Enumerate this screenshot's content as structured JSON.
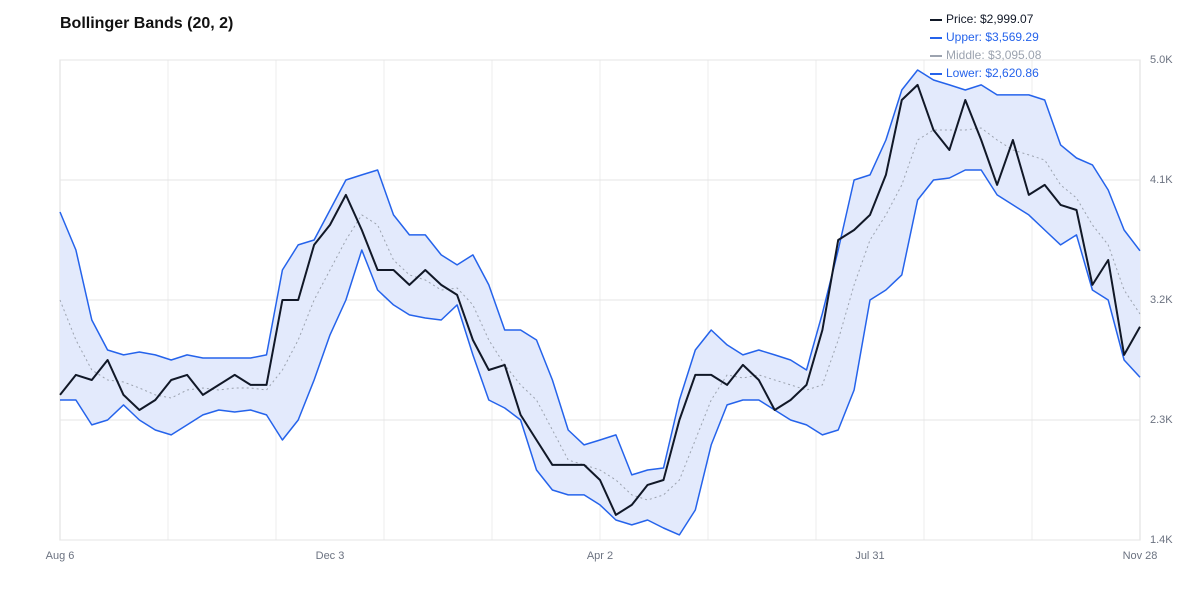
{
  "chart_data": {
    "type": "bollinger",
    "title": "Bollinger Bands (20, 2)",
    "categories": [
      "Aug 6",
      null,
      null,
      null,
      null,
      null,
      null,
      null,
      null,
      null,
      null,
      null,
      null,
      null,
      null,
      null,
      null,
      "Dec 3",
      null,
      null,
      null,
      null,
      null,
      null,
      null,
      null,
      null,
      null,
      null,
      null,
      null,
      null,
      null,
      null,
      "Apr 2",
      null,
      null,
      null,
      null,
      null,
      null,
      null,
      null,
      null,
      null,
      null,
      null,
      null,
      null,
      null,
      null,
      "Jul 31",
      null,
      null,
      null,
      null,
      null,
      null,
      null,
      null,
      null,
      null,
      null,
      null,
      null,
      null,
      null,
      null,
      "Nov 28"
    ],
    "ylim": [
      1400,
      5000
    ],
    "yticks": [
      {
        "value": 1400,
        "label": "1.4K"
      },
      {
        "value": 2300,
        "label": "2.3K"
      },
      {
        "value": 3200,
        "label": "3.2K"
      },
      {
        "value": 4100,
        "label": "4.1K"
      },
      {
        "value": 5000,
        "label": "5.0K"
      }
    ],
    "grid": true,
    "band_fill": "#e3eafc",
    "series": [
      {
        "name": "Price: $2,999.07",
        "color": "#111827",
        "values": [
          2488,
          2638,
          2600,
          2750,
          2488,
          2375,
          2450,
          2600,
          2638,
          2488,
          2563,
          2638,
          2563,
          2563,
          3200,
          3200,
          3613,
          3763,
          3988,
          3725,
          3425,
          3425,
          3313,
          3425,
          3313,
          3238,
          2900,
          2675,
          2713,
          2338,
          2150,
          1963,
          1963,
          1963,
          1850,
          1588,
          1663,
          1813,
          1850,
          2300,
          2638,
          2638,
          2563,
          2713,
          2600,
          2375,
          2450,
          2563,
          2975,
          3650,
          3725,
          3838,
          4138,
          4700,
          4813,
          4475,
          4325,
          4700,
          4400,
          4063,
          4400,
          3988,
          4063,
          3913,
          3875,
          3313,
          3500,
          2788,
          2999.07
        ]
      },
      {
        "name": "Upper: $3,569.29",
        "color": "#2563eb",
        "values": [
          3860,
          3575,
          3050,
          2825,
          2788,
          2810,
          2788,
          2750,
          2788,
          2765,
          2765,
          2765,
          2765,
          2788,
          3425,
          3613,
          3650,
          3875,
          4100,
          4138,
          4175,
          3838,
          3688,
          3688,
          3538,
          3463,
          3538,
          3313,
          2975,
          2975,
          2900,
          2600,
          2225,
          2113,
          2150,
          2188,
          1888,
          1925,
          1940,
          2450,
          2825,
          2975,
          2863,
          2788,
          2825,
          2788,
          2750,
          2675,
          3100,
          3575,
          4100,
          4138,
          4400,
          4775,
          4925,
          4850,
          4813,
          4775,
          4813,
          4738,
          4738,
          4738,
          4700,
          4363,
          4265,
          4213,
          4025,
          3725,
          3569.29
        ]
      },
      {
        "name": "Middle: $3,095.08",
        "color": "#9ca3af",
        "dashed": true,
        "values": [
          3200,
          2900,
          2675,
          2600,
          2585,
          2540,
          2488,
          2465,
          2525,
          2540,
          2525,
          2540,
          2540,
          2525,
          2675,
          2900,
          3200,
          3425,
          3650,
          3838,
          3763,
          3500,
          3388,
          3350,
          3275,
          3290,
          3163,
          2900,
          2713,
          2563,
          2450,
          2225,
          2000,
          1963,
          1925,
          1850,
          1738,
          1700,
          1738,
          1850,
          2150,
          2450,
          2638,
          2615,
          2638,
          2600,
          2563,
          2525,
          2563,
          2900,
          3313,
          3650,
          3838,
          4063,
          4400,
          4475,
          4475,
          4475,
          4490,
          4400,
          4325,
          4288,
          4250,
          4063,
          3965,
          3763,
          3613,
          3275,
          3095.08
        ]
      },
      {
        "name": "Lower: $2,620.86",
        "color": "#2563eb",
        "values": [
          2450,
          2450,
          2263,
          2300,
          2413,
          2300,
          2225,
          2188,
          2263,
          2338,
          2375,
          2360,
          2375,
          2338,
          2150,
          2300,
          2600,
          2938,
          3200,
          3575,
          3275,
          3163,
          3088,
          3065,
          3050,
          3163,
          2788,
          2450,
          2390,
          2300,
          1925,
          1775,
          1738,
          1738,
          1663,
          1550,
          1513,
          1550,
          1490,
          1438,
          1625,
          2113,
          2413,
          2450,
          2450,
          2375,
          2300,
          2263,
          2188,
          2225,
          2525,
          3200,
          3275,
          3388,
          3950,
          4100,
          4115,
          4175,
          4175,
          3988,
          3913,
          3838,
          3725,
          3613,
          3688,
          3275,
          3200,
          2750,
          2620.86
        ]
      }
    ]
  }
}
